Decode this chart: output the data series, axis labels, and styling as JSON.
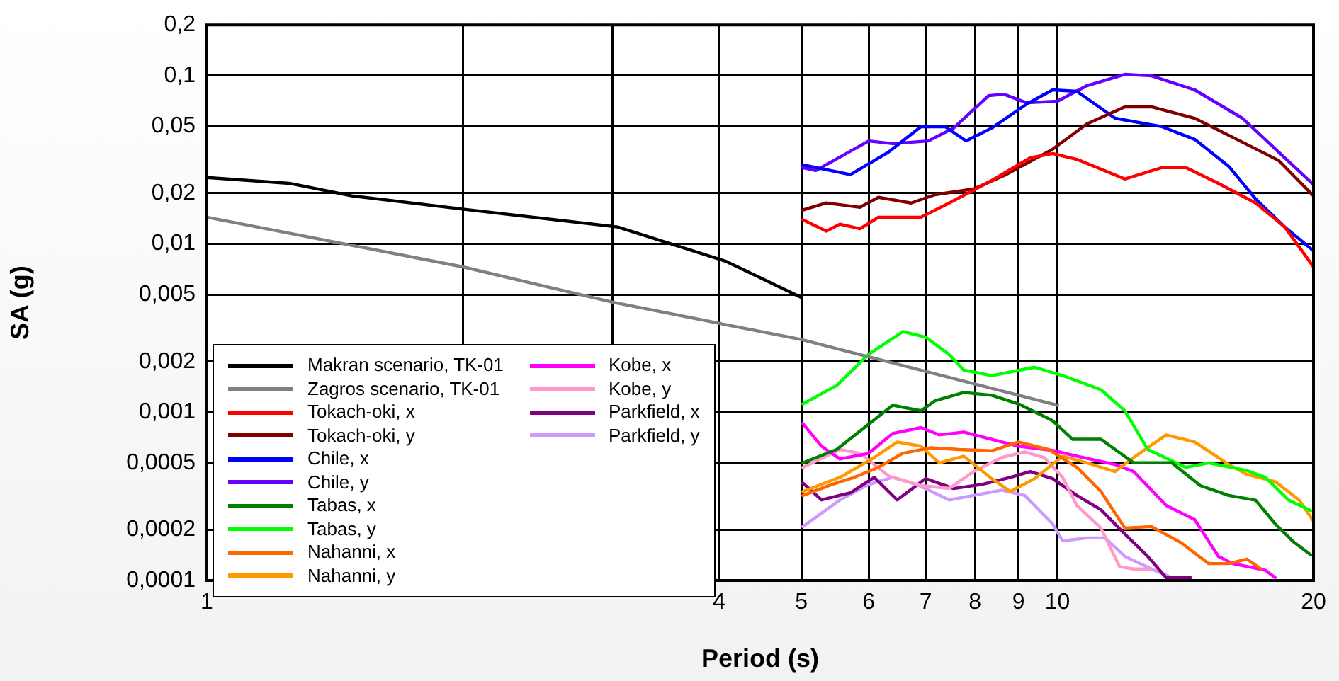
{
  "chart_data": {
    "type": "line",
    "xlabel": "Period (s)",
    "ylabel": "SA (g)",
    "log": "xy",
    "xlim": [
      1,
      20
    ],
    "xticks": [
      1,
      {
        "value": 2,
        "label": null
      },
      {
        "value": 3,
        "label": null
      },
      4,
      5,
      6,
      7,
      8,
      9,
      10,
      20
    ],
    "ylim": [
      0.0001,
      0.2
    ],
    "yticks": [
      {
        "value": 0.0001,
        "label": "0,0001"
      },
      {
        "value": 0.0002,
        "label": "0,0002"
      },
      {
        "value": 0.0005,
        "label": "0,0005"
      },
      {
        "value": 0.001,
        "label": "0,001"
      },
      {
        "value": 0.002,
        "label": "0,002"
      },
      {
        "value": 0.005,
        "label": "0,005"
      },
      {
        "value": 0.01,
        "label": "0,01"
      },
      {
        "value": 0.02,
        "label": "0,02"
      },
      {
        "value": 0.05,
        "label": "0,05"
      },
      {
        "value": 0.1,
        "label": "0,1"
      },
      {
        "value": 0.2,
        "label": "0,2"
      }
    ],
    "grid": true,
    "legend": "bottom left",
    "series": [
      {
        "name": "Makran scenario, TK-01",
        "color": "#000000",
        "x": [
          1,
          1.25,
          1.48,
          2.04,
          3.04,
          4.07,
          5
        ],
        "values": [
          0.0248,
          0.0229,
          0.0193,
          0.0159,
          0.0126,
          0.0079,
          0.0048
        ]
      },
      {
        "name": "Zagros scenario, TK-01",
        "color": "#808080",
        "x": [
          1,
          2,
          3,
          5,
          10
        ],
        "values": [
          0.0144,
          0.0073,
          0.0045,
          0.0027,
          0.0011
        ]
      },
      {
        "name": "Tokach-oki, x",
        "color": "#ff0000",
        "x": [
          5.02,
          5.35,
          5.55,
          5.86,
          6.16,
          6.91,
          7.46,
          8.37,
          9.29,
          9.87,
          10.54,
          12,
          13.27,
          14.16,
          15.46,
          17.1,
          18.5,
          20
        ],
        "values": [
          0.0139,
          0.0119,
          0.0131,
          0.0123,
          0.0144,
          0.0144,
          0.0175,
          0.0238,
          0.0325,
          0.0344,
          0.0318,
          0.0243,
          0.0284,
          0.0284,
          0.0229,
          0.0175,
          0.0126,
          0.0073
        ]
      },
      {
        "name": "Tokach-oki, y",
        "color": "#800000",
        "x": [
          5.02,
          5.35,
          5.55,
          5.86,
          6.16,
          6.73,
          7.18,
          7.97,
          8.7,
          9.87,
          10.83,
          12,
          12.9,
          14.5,
          16.5,
          18.2,
          20
        ],
        "values": [
          0.0159,
          0.0175,
          0.0171,
          0.0165,
          0.0189,
          0.0175,
          0.0196,
          0.0212,
          0.0258,
          0.0365,
          0.0516,
          0.0652,
          0.0652,
          0.0558,
          0.0402,
          0.0313,
          0.0193
        ]
      },
      {
        "name": "Chile, x",
        "color": "#0000ff",
        "x": [
          5.02,
          5.71,
          6.33,
          6.91,
          7.38,
          7.81,
          8.37,
          9.2,
          9.87,
          10.54,
          11.69,
          13.27,
          14.5,
          15.9,
          17.1,
          18.5,
          20
        ],
        "values": [
          0.0295,
          0.0258,
          0.0351,
          0.0497,
          0.0497,
          0.0409,
          0.0488,
          0.0677,
          0.0822,
          0.0806,
          0.0558,
          0.0497,
          0.0418,
          0.0289,
          0.0185,
          0.0126,
          0.0091
        ]
      },
      {
        "name": "Chile, y",
        "color": "#6600ff",
        "x": [
          5.02,
          5.2,
          6,
          6.4,
          7.05,
          7.55,
          8.3,
          8.65,
          9.2,
          10,
          10.83,
          12,
          12.9,
          14.5,
          16.5,
          18.2,
          20
        ],
        "values": [
          0.0284,
          0.0273,
          0.0409,
          0.0394,
          0.0409,
          0.0488,
          0.076,
          0.0775,
          0.069,
          0.0704,
          0.0871,
          0.1017,
          0.0997,
          0.0822,
          0.0558,
          0.0351,
          0.0225
        ]
      },
      {
        "name": "Tabas, x",
        "color": "#008000",
        "x": [
          5.02,
          5.5,
          5.93,
          6.4,
          6.91,
          7.18,
          7.76,
          8.37,
          9,
          9.87,
          10.42,
          11.25,
          12.29,
          13.63,
          14.72,
          15.9,
          17.1,
          18.03,
          18.96,
          19.85
        ],
        "values": [
          0.0005,
          0.0006,
          0.00081,
          0.0011,
          0.00102,
          0.00117,
          0.00131,
          0.00126,
          0.00112,
          0.00089,
          0.00069,
          0.00069,
          0.0005,
          0.0005,
          0.000366,
          0.00032,
          0.0003,
          0.000217,
          0.000169,
          0.000142
        ]
      },
      {
        "name": "Tabas, y",
        "color": "#00ff00",
        "x": [
          5.02,
          5.5,
          6,
          6.58,
          7,
          7.45,
          7.76,
          8.37,
          9.4,
          10.14,
          11.25,
          12,
          12.77,
          14.16,
          15.06,
          16.7,
          17.56,
          18.7,
          19.85
        ],
        "values": [
          0.00112,
          0.00144,
          0.00221,
          0.00301,
          0.00279,
          0.00221,
          0.00178,
          0.00165,
          0.00185,
          0.00165,
          0.00136,
          0.00102,
          0.0006,
          0.00047,
          0.0005,
          0.00045,
          0.00041,
          0.0003,
          0.00026
        ]
      },
      {
        "name": "Nahanni, x",
        "color": "#ff6600",
        "x": [
          5.02,
          5.43,
          5.77,
          6.16,
          6.58,
          7.1,
          7.67,
          8.37,
          9,
          9.76,
          10.54,
          11.25,
          12,
          12.9,
          13.94,
          15.06,
          15.9,
          16.7,
          17.35
        ],
        "values": [
          0.00032,
          0.000372,
          0.00041,
          0.00047,
          0.00057,
          0.000615,
          0.0006,
          0.00059,
          0.000665,
          0.0006,
          0.00047,
          0.000338,
          0.000205,
          0.000209,
          0.000169,
          0.000126,
          0.000126,
          0.000134,
          0.000117
        ]
      },
      {
        "name": "Nahanni, y",
        "color": "#ff9900",
        "x": [
          5.02,
          5.55,
          6.09,
          6.48,
          6.91,
          7.26,
          7.76,
          8.37,
          8.8,
          9.4,
          10.14,
          10.83,
          11.69,
          12.29,
          13.42,
          14.5,
          15.9,
          16.7,
          18.03,
          19.24,
          20
        ],
        "values": [
          0.000338,
          0.00041,
          0.000538,
          0.000665,
          0.000628,
          0.0005,
          0.000548,
          0.000403,
          0.000338,
          0.000403,
          0.000548,
          0.0005,
          0.000444,
          0.000538,
          0.000733,
          0.000665,
          0.000489,
          0.000427,
          0.000387,
          0.0003,
          0.000225
        ]
      },
      {
        "name": "Kobe, x",
        "color": "#ff00ff",
        "x": [
          5.02,
          5.28,
          5.55,
          6,
          6.4,
          6.91,
          7.26,
          7.76,
          8.37,
          9,
          9.87,
          10.54,
          11.69,
          12.29,
          13.42,
          14.5,
          15.46,
          16.07,
          17.56,
          18.03
        ],
        "values": [
          0.000855,
          0.000628,
          0.000527,
          0.00057,
          0.000747,
          0.00081,
          0.000733,
          0.000762,
          0.00069,
          0.000628,
          0.000593,
          0.000548,
          0.000489,
          0.000444,
          0.000279,
          0.00023,
          0.000139,
          0.000126,
          0.000115,
          0.000104
        ]
      },
      {
        "name": "Kobe, y",
        "color": "#ff99cc",
        "x": [
          5.02,
          5.55,
          5.86,
          6.33,
          6.91,
          7.46,
          7.97,
          8.6,
          9.15,
          9.65,
          10.14,
          10.54,
          11.25,
          11.83,
          12.29,
          12.9
        ],
        "values": [
          0.00047,
          0.0006,
          0.00057,
          0.000418,
          0.000366,
          0.000352,
          0.000444,
          0.000538,
          0.000581,
          0.000538,
          0.00041,
          0.000279,
          0.000205,
          0.000121,
          0.000117,
          0.000117
        ]
      },
      {
        "name": "Parkfield, x",
        "color": "#800080",
        "x": [
          5.02,
          5.28,
          5.71,
          6.09,
          6.48,
          7,
          7.55,
          8.15,
          8.8,
          9.29,
          9.87,
          10.54,
          11.25,
          12,
          12.77,
          13.42,
          14.33
        ],
        "values": [
          0.000379,
          0.000301,
          0.000332,
          0.00041,
          0.000301,
          0.000403,
          0.000352,
          0.000372,
          0.00041,
          0.000444,
          0.000403,
          0.00032,
          0.000263,
          0.000189,
          0.000139,
          0.000104,
          0.000104
        ]
      },
      {
        "name": "Parkfield, y",
        "color": "#cc99ff",
        "x": [
          5.02,
          5.55,
          6,
          6.4,
          6.83,
          7.46,
          7.97,
          8.6,
          9.15,
          9.87,
          10.14,
          10.83,
          11.38,
          12,
          12.9,
          13.63
        ],
        "values": [
          0.000209,
          0.000301,
          0.000372,
          0.00041,
          0.000372,
          0.000301,
          0.00032,
          0.000344,
          0.00032,
          0.000217,
          0.000172,
          0.000179,
          0.000179,
          0.000139,
          0.000117,
          0.000104
        ]
      }
    ]
  }
}
